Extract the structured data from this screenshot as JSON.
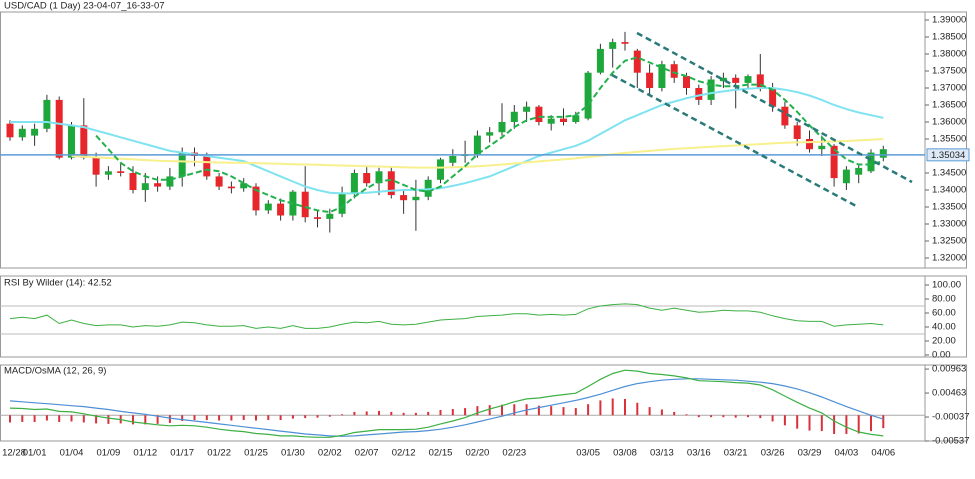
{
  "chart_data": [
    {
      "type": "candlestick",
      "title": "USD/CAD (1 Day) 23-04-07_16-33-07",
      "categories": [
        "12/28",
        null,
        "01/01",
        null,
        null,
        "01/04",
        null,
        null,
        "01/09",
        null,
        null,
        "01/12",
        null,
        null,
        "01/17",
        null,
        null,
        "01/22",
        null,
        null,
        "01/25",
        null,
        null,
        "01/30",
        null,
        null,
        "02/02",
        null,
        null,
        "02/07",
        null,
        null,
        "02/12",
        null,
        null,
        "02/15",
        null,
        null,
        "02/20",
        null,
        null,
        "02/23",
        null,
        null,
        null,
        null,
        null,
        "03/05",
        null,
        null,
        "03/08",
        null,
        null,
        "03/13",
        null,
        null,
        "03/16",
        null,
        null,
        "03/21",
        null,
        null,
        "03/26",
        null,
        null,
        "03/29",
        null,
        null,
        "04/03",
        null,
        null,
        "04/06"
      ],
      "open": [
        1.3595,
        1.3555,
        1.356,
        1.358,
        1.3665,
        1.3495,
        1.359,
        1.3495,
        1.3445,
        1.3455,
        1.345,
        1.34,
        1.342,
        1.341,
        1.344,
        1.351,
        1.35,
        1.344,
        1.341,
        1.3405,
        1.341,
        1.334,
        1.336,
        1.3325,
        1.3395,
        1.332,
        1.3315,
        1.333,
        1.339,
        1.345,
        1.342,
        1.3455,
        1.3385,
        1.337,
        1.338,
        1.343,
        1.348,
        1.35,
        1.3505,
        1.356,
        1.357,
        1.36,
        1.363,
        1.3645,
        1.3595,
        1.361,
        1.36,
        1.361,
        1.3745,
        1.3815,
        1.3835,
        1.381,
        1.3745,
        1.37,
        1.377,
        1.3735,
        1.37,
        1.3665,
        1.372,
        1.373,
        1.3715,
        1.374,
        1.37,
        1.3645,
        1.359,
        1.355,
        1.352,
        1.353,
        1.342,
        1.3445,
        1.3455,
        1.3495
      ],
      "high": [
        1.3605,
        1.359,
        1.3595,
        1.368,
        1.3675,
        1.36,
        1.367,
        1.351,
        1.347,
        1.348,
        1.347,
        1.345,
        1.344,
        1.3465,
        1.3525,
        1.3525,
        1.351,
        1.345,
        1.3425,
        1.3435,
        1.342,
        1.337,
        1.3375,
        1.34,
        1.347,
        1.334,
        1.3345,
        1.341,
        1.346,
        1.347,
        1.3465,
        1.347,
        1.34,
        1.343,
        1.344,
        1.3495,
        1.352,
        1.3545,
        1.3575,
        1.3585,
        1.3655,
        1.365,
        1.366,
        1.365,
        1.362,
        1.364,
        1.363,
        1.375,
        1.383,
        1.3845,
        1.3865,
        1.3815,
        1.377,
        1.378,
        1.378,
        1.3745,
        1.371,
        1.3735,
        1.3745,
        1.374,
        1.374,
        1.38,
        1.3715,
        1.366,
        1.36,
        1.3575,
        1.356,
        1.3535,
        1.347,
        1.3475,
        1.352,
        1.353
      ],
      "low": [
        1.3545,
        1.3545,
        1.353,
        1.357,
        1.349,
        1.349,
        1.349,
        1.341,
        1.343,
        1.344,
        1.339,
        1.3365,
        1.3395,
        1.34,
        1.341,
        1.347,
        1.343,
        1.34,
        1.339,
        1.3395,
        1.3325,
        1.333,
        1.331,
        1.331,
        1.3305,
        1.329,
        1.3275,
        1.332,
        1.3375,
        1.341,
        1.3385,
        1.3375,
        1.333,
        1.328,
        1.337,
        1.342,
        1.347,
        1.348,
        1.3495,
        1.354,
        1.356,
        1.358,
        1.36,
        1.359,
        1.3575,
        1.359,
        1.3595,
        1.3605,
        1.374,
        1.376,
        1.381,
        1.37,
        1.368,
        1.369,
        1.3715,
        1.368,
        1.365,
        1.365,
        1.37,
        1.364,
        1.37,
        1.369,
        1.363,
        1.358,
        1.353,
        1.351,
        1.35,
        1.341,
        1.34,
        1.342,
        1.345,
        1.3485
      ],
      "close": [
        1.3555,
        1.358,
        1.358,
        1.3665,
        1.3495,
        1.359,
        1.3495,
        1.3445,
        1.3455,
        1.345,
        1.34,
        1.342,
        1.341,
        1.344,
        1.351,
        1.35,
        1.344,
        1.341,
        1.3405,
        1.342,
        1.334,
        1.336,
        1.3325,
        1.3395,
        1.332,
        1.3315,
        1.333,
        1.339,
        1.345,
        1.342,
        1.3455,
        1.3385,
        1.337,
        1.338,
        1.343,
        1.349,
        1.35,
        1.3505,
        1.356,
        1.357,
        1.36,
        1.363,
        1.3645,
        1.36,
        1.361,
        1.36,
        1.362,
        1.3745,
        1.3815,
        1.3835,
        1.383,
        1.3745,
        1.37,
        1.377,
        1.373,
        1.37,
        1.3665,
        1.3725,
        1.373,
        1.3715,
        1.3735,
        1.37,
        1.3645,
        1.359,
        1.355,
        1.352,
        1.353,
        1.3435,
        1.346,
        1.3465,
        1.351,
        1.352
      ],
      "up_color": "#1ea83c",
      "down_color": "#e6262b",
      "series": [
        {
          "color": "#7fe3f0",
          "values": [
            1.36,
            1.36,
            1.36,
            1.36,
            1.3595,
            1.359,
            1.3585,
            1.3575,
            1.3565,
            1.3555,
            1.3545,
            1.3535,
            1.3525,
            1.3515,
            1.351,
            1.3505,
            1.35,
            1.3495,
            1.349,
            1.3485,
            1.347,
            1.3455,
            1.344,
            1.3425,
            1.341,
            1.34,
            1.3392,
            1.339,
            1.339,
            1.3392,
            1.3395,
            1.3398,
            1.34,
            1.34,
            1.3402,
            1.3405,
            1.3412,
            1.342,
            1.343,
            1.344,
            1.3455,
            1.347,
            1.3485,
            1.35,
            1.351,
            1.352,
            1.353,
            1.3545,
            1.3565,
            1.3585,
            1.3605,
            1.362,
            1.3635,
            1.365,
            1.366,
            1.367,
            1.3678,
            1.3685,
            1.369,
            1.3695,
            1.3698,
            1.37,
            1.37,
            1.3695,
            1.3688,
            1.3678,
            1.3665,
            1.365,
            1.3638,
            1.3628,
            1.362,
            1.3612
          ]
        },
        {
          "color": "#f7f08c",
          "values": [
            null,
            null,
            null,
            null,
            null,
            1.35,
            1.3498,
            1.3496,
            1.3494,
            1.3492,
            1.349,
            1.3488,
            1.3486,
            1.3485,
            1.3484,
            1.3483,
            1.3482,
            1.3481,
            1.348,
            1.348,
            1.3479,
            1.3478,
            1.3477,
            1.3476,
            1.3475,
            1.3474,
            1.3473,
            1.3472,
            1.3471,
            1.347,
            1.3469,
            1.3468,
            1.3467,
            1.3466,
            1.3466,
            1.3466,
            1.3467,
            1.3468,
            1.347,
            1.3472,
            1.3475,
            1.3478,
            1.3481,
            1.3484,
            1.3487,
            1.349,
            1.3493,
            1.3497,
            1.3501,
            1.3505,
            1.3509,
            1.3512,
            1.3515,
            1.3518,
            1.3521,
            1.3523,
            1.3525,
            1.3527,
            1.3529,
            1.3531,
            1.3533,
            1.3535,
            1.3537,
            1.3539,
            1.354,
            1.3541,
            1.3542,
            1.3543,
            1.3544,
            1.3546,
            1.3548,
            1.355
          ]
        },
        {
          "color": "#22b14c",
          "dashed": true,
          "values": [
            null,
            null,
            null,
            null,
            null,
            null,
            null,
            1.356,
            1.352,
            1.348,
            1.3455,
            1.344,
            1.343,
            1.343,
            1.344,
            1.345,
            1.346,
            1.3455,
            1.344,
            1.342,
            1.34,
            1.3385,
            1.337,
            1.336,
            1.335,
            1.334,
            1.3335,
            1.335,
            1.338,
            1.3405,
            1.3425,
            1.343,
            1.3415,
            1.34,
            1.3395,
            1.341,
            1.344,
            1.347,
            1.3505,
            1.353,
            1.3555,
            1.3585,
            1.3605,
            1.3615,
            1.3615,
            1.3615,
            1.362,
            1.365,
            1.37,
            1.3745,
            1.378,
            1.379,
            1.3775,
            1.376,
            1.3745,
            1.3735,
            1.372,
            1.371,
            1.3705,
            1.3705,
            1.371,
            1.371,
            1.3695,
            1.3665,
            1.363,
            1.359,
            1.3555,
            1.352,
            1.349,
            1.3475,
            1.3475,
            1.3485
          ]
        }
      ],
      "current_price": 1.35034,
      "current_price_color": "#5b9bd5",
      "ylim": [
        1.31706,
        1.39235
      ],
      "yticks": [
        {
          "value": 1.39,
          "label": "1.39000"
        },
        {
          "value": 1.385,
          "label": "1.38500"
        },
        {
          "value": 1.38,
          "label": "1.38000"
        },
        {
          "value": 1.375,
          "label": "1.37500"
        },
        {
          "value": 1.37,
          "label": "1.37000"
        },
        {
          "value": 1.365,
          "label": "1.36500"
        },
        {
          "value": 1.36,
          "label": "1.36000"
        },
        {
          "value": 1.355,
          "label": "1.35500"
        },
        {
          "value": 1.345,
          "label": "1.34500"
        },
        {
          "value": 1.34,
          "label": "1.34000"
        },
        {
          "value": 1.335,
          "label": "1.33500"
        },
        {
          "value": 1.33,
          "label": "1.33000"
        },
        {
          "value": 1.325,
          "label": "1.32500"
        },
        {
          "value": 1.32,
          "label": "1.32000"
        }
      ]
    },
    {
      "type": "line",
      "title": "RSI By Wilder (14): 42.52",
      "series": [
        {
          "color": "#3cb043",
          "values": [
            52,
            54,
            52,
            57,
            45,
            50,
            45,
            42,
            43,
            43,
            40,
            42,
            41,
            43,
            47,
            46,
            43,
            41,
            41,
            42,
            38,
            40,
            38,
            42,
            38,
            38,
            40,
            44,
            47,
            46,
            48,
            44,
            43,
            44,
            47,
            50,
            51,
            52,
            55,
            56,
            57,
            59,
            59,
            57,
            58,
            57,
            58,
            66,
            70,
            72,
            73,
            72,
            67,
            64,
            67,
            64,
            61,
            62,
            64,
            63,
            63,
            61,
            56,
            52,
            49,
            48,
            48,
            41,
            43,
            44,
            45,
            43
          ]
        }
      ],
      "levels": [
        70,
        30
      ],
      "ylim": [
        -2.9,
        112.9
      ],
      "yticks": [
        {
          "value": 100,
          "label": "100.00"
        },
        {
          "value": 80,
          "label": "80.00"
        },
        {
          "value": 60,
          "label": "60.00"
        },
        {
          "value": 40,
          "label": "40.00"
        },
        {
          "value": 20,
          "label": "20.00"
        },
        {
          "value": 0,
          "label": "0.00"
        }
      ]
    },
    {
      "type": "combo",
      "title": "MACD/OsMA (12, 26, 9)",
      "series": [
        {
          "type": "bar",
          "color": "#d9303a",
          "values": [
            -0.0015,
            -0.0014,
            -0.0014,
            -0.0011,
            -0.0014,
            -0.0013,
            -0.0015,
            -0.0017,
            -0.0018,
            -0.0017,
            -0.0019,
            -0.0019,
            -0.0018,
            -0.0016,
            -0.0012,
            -0.001,
            -0.001,
            -0.0011,
            -0.0011,
            -0.001,
            -0.0011,
            -0.001,
            -0.001,
            -0.0007,
            -0.0006,
            -0.0005,
            -0.0003,
            0.0002,
            0.0007,
            0.0008,
            0.0009,
            0.0007,
            0.0005,
            0.0005,
            0.0007,
            0.0011,
            0.0013,
            0.0015,
            0.0019,
            0.0021,
            0.0022,
            0.0023,
            0.0023,
            0.002,
            0.0019,
            0.0017,
            0.0015,
            0.0023,
            0.0031,
            0.0035,
            0.0034,
            0.0026,
            0.0017,
            0.0012,
            0.0007,
            0.0002,
            -0.0004,
            -0.0004,
            -0.0004,
            -0.0005,
            -0.0004,
            -0.0006,
            -0.0013,
            -0.0021,
            -0.0028,
            -0.0032,
            -0.0033,
            -0.0039,
            -0.0039,
            -0.0038,
            -0.0033,
            -0.0027
          ]
        },
        {
          "type": "line",
          "color": "#4e8fd6",
          "values": [
            0.003,
            0.0028,
            0.0026,
            0.0024,
            0.0022,
            0.002,
            0.0018,
            0.0015,
            0.0012,
            0.0008,
            0.0005,
            0.0002,
            -0.0002,
            -0.0006,
            -0.0009,
            -0.0012,
            -0.0015,
            -0.0018,
            -0.0021,
            -0.0024,
            -0.0027,
            -0.003,
            -0.0033,
            -0.0036,
            -0.0039,
            -0.0041,
            -0.0043,
            -0.0044,
            -0.0043,
            -0.0041,
            -0.0039,
            -0.0037,
            -0.0035,
            -0.0034,
            -0.0032,
            -0.0029,
            -0.0025,
            -0.002,
            -0.0014,
            -0.0008,
            -0.0002,
            0.0005,
            0.0011,
            0.0016,
            0.0021,
            0.0026,
            0.0031,
            0.0037,
            0.0044,
            0.0052,
            0.006,
            0.0066,
            0.007,
            0.0073,
            0.0075,
            0.0076,
            0.0076,
            0.0075,
            0.0074,
            0.0073,
            0.0071,
            0.0069,
            0.0066,
            0.0061,
            0.0055,
            0.0047,
            0.0038,
            0.0028,
            0.0018,
            0.0009,
            0.0,
            -0.0008
          ]
        },
        {
          "type": "line",
          "color": "#3cb043",
          "values": [
            0.0015,
            0.0014,
            0.0012,
            0.0013,
            0.0008,
            0.0007,
            0.0003,
            -0.0002,
            -0.0006,
            -0.0009,
            -0.0014,
            -0.0017,
            -0.002,
            -0.0022,
            -0.0021,
            -0.0022,
            -0.0025,
            -0.0029,
            -0.0032,
            -0.0034,
            -0.0038,
            -0.004,
            -0.0043,
            -0.0043,
            -0.0045,
            -0.0046,
            -0.0046,
            -0.0042,
            -0.0036,
            -0.0033,
            -0.003,
            -0.003,
            -0.003,
            -0.0029,
            -0.0025,
            -0.0018,
            -0.0012,
            -0.0005,
            0.0005,
            0.0013,
            0.002,
            0.0028,
            0.0034,
            0.0036,
            0.004,
            0.0043,
            0.0046,
            0.006,
            0.0075,
            0.0087,
            0.0094,
            0.0092,
            0.0087,
            0.0085,
            0.0082,
            0.0078,
            0.0072,
            0.0071,
            0.007,
            0.0068,
            0.0067,
            0.0063,
            0.0053,
            0.004,
            0.0027,
            0.0015,
            0.0005,
            -0.0012,
            -0.0025,
            -0.0035,
            -0.004,
            -0.0043
          ]
        }
      ],
      "ylim": [
        -0.00537,
        0.01048
      ],
      "yticks": [
        0.00963,
        0.00463,
        -0.00037,
        -0.00537
      ]
    }
  ]
}
